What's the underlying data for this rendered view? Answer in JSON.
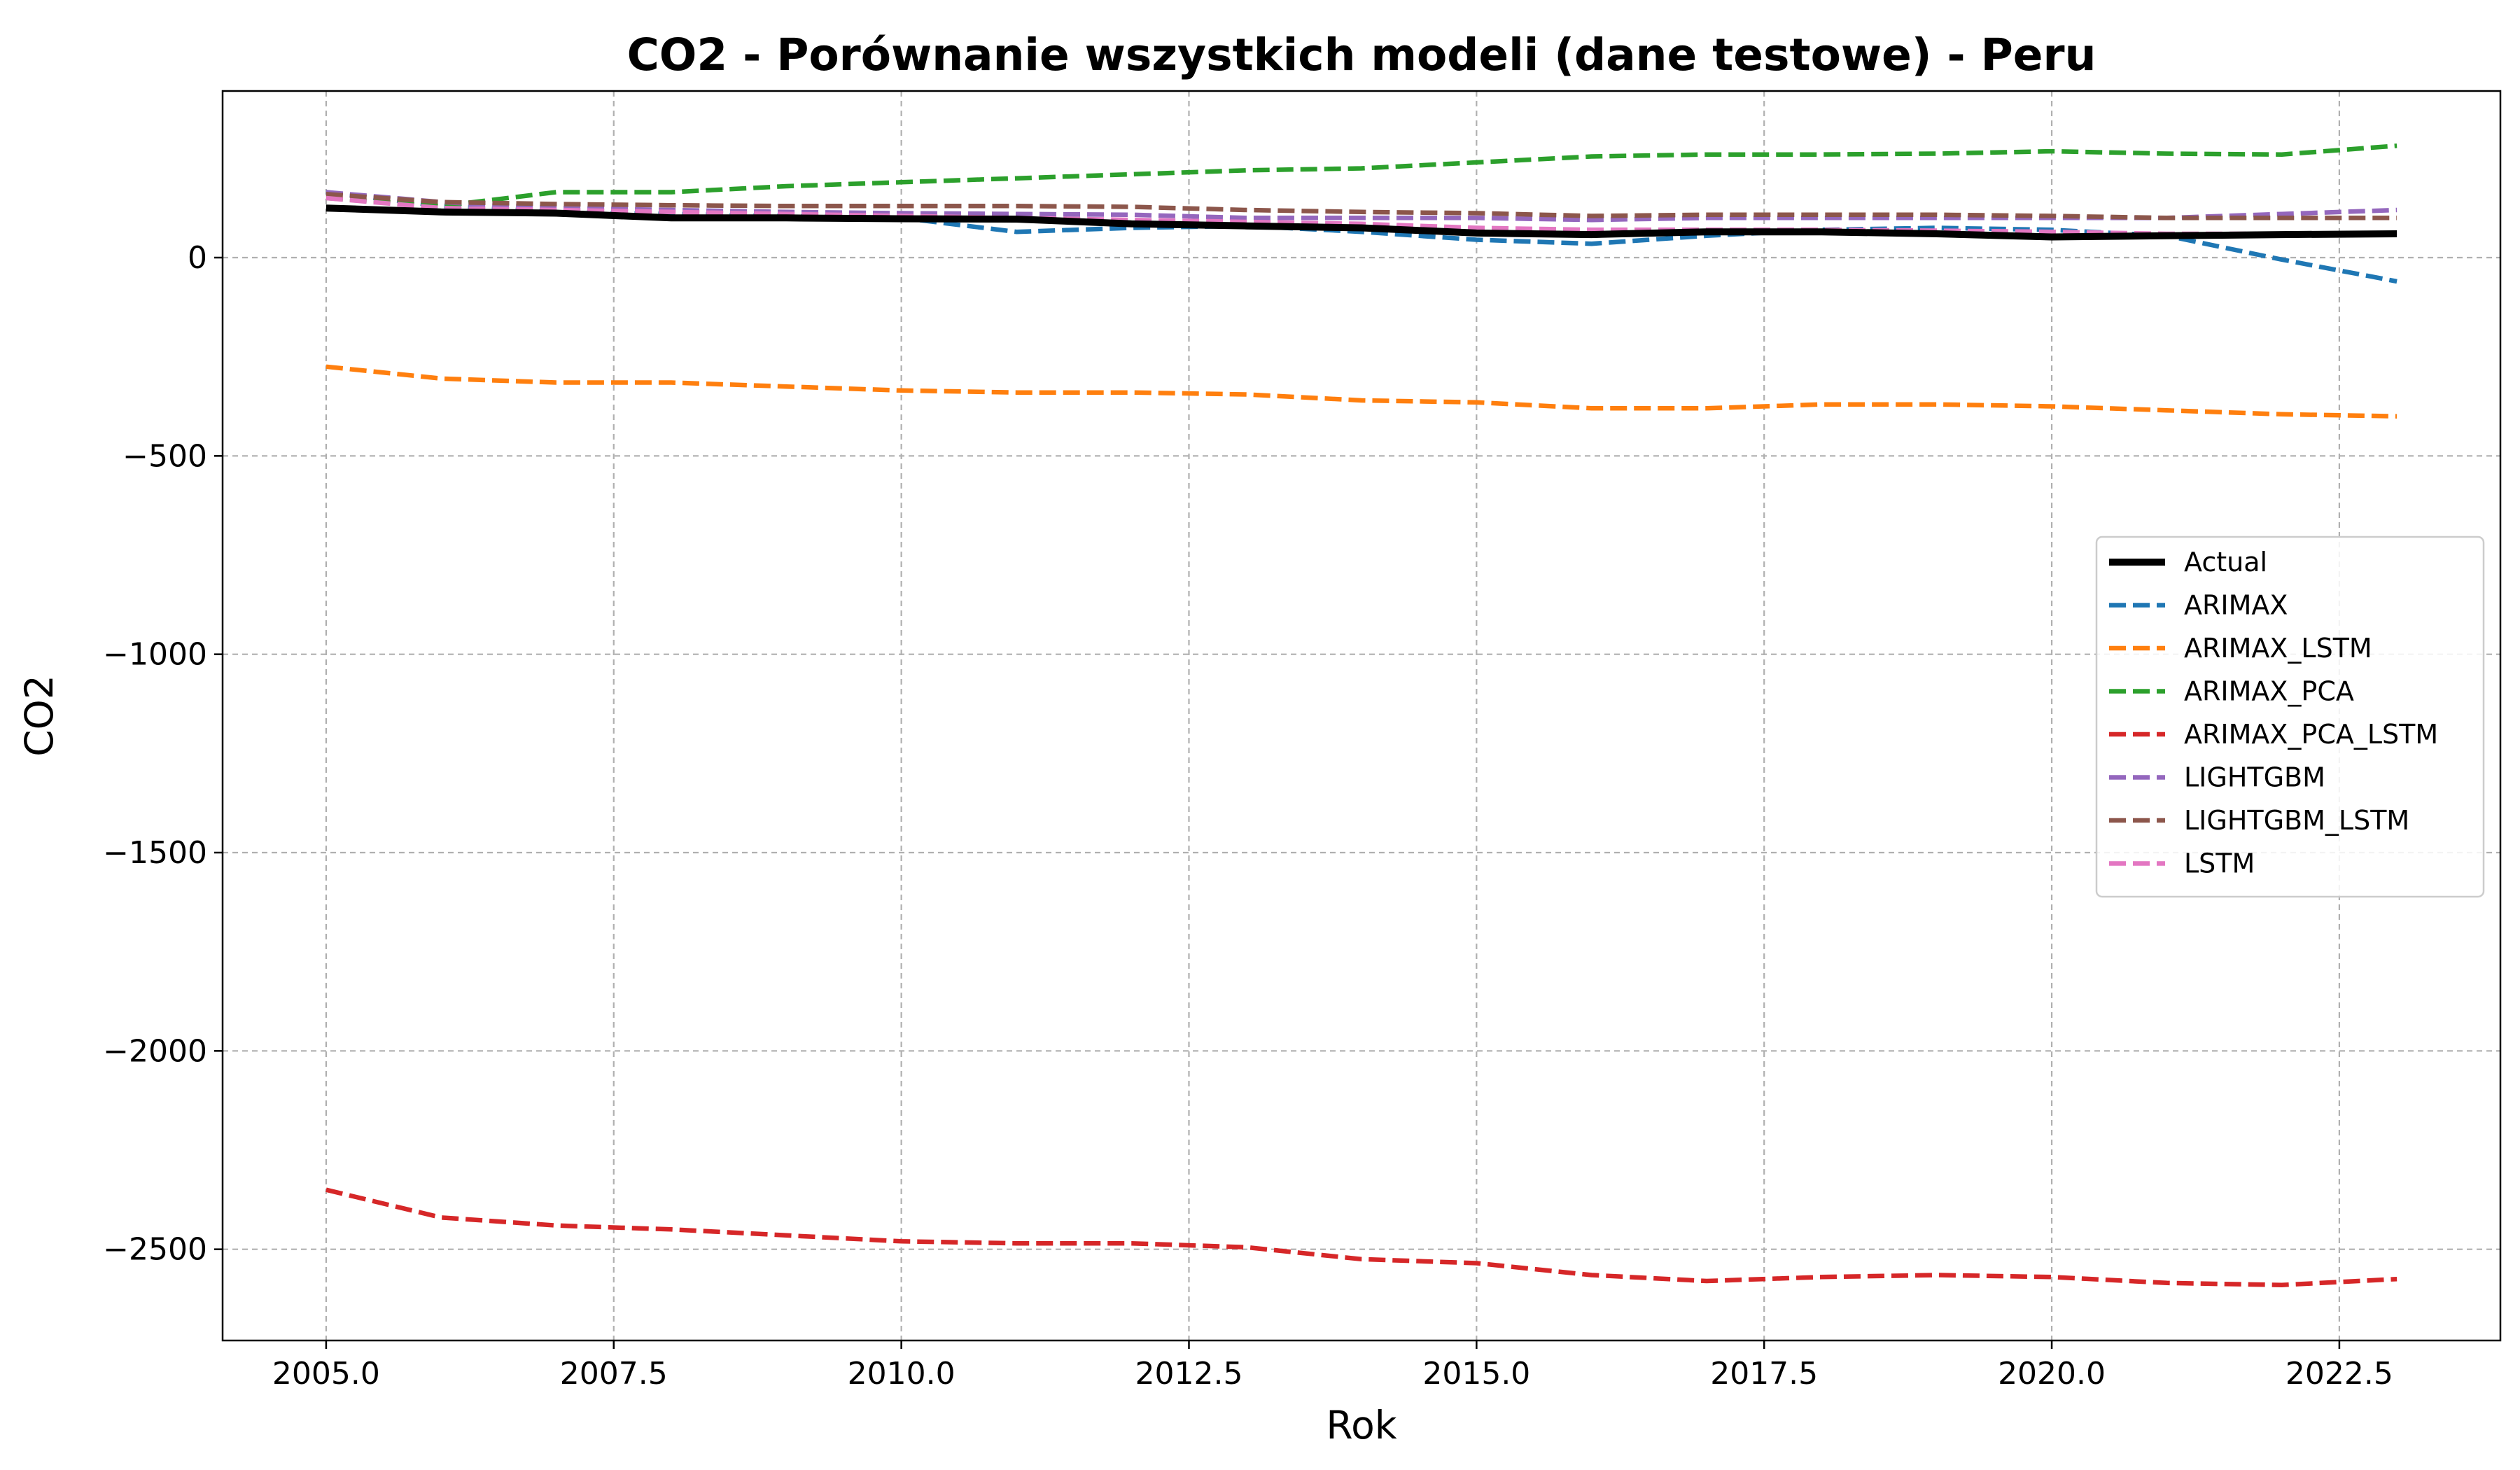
{
  "chart_data": {
    "type": "line",
    "title": "CO2 - Porównanie wszystkich modeli (dane testowe) - Peru",
    "xlabel": "Rok",
    "ylabel": "CO2",
    "xlim": [
      2004.1,
      2023.9
    ],
    "ylim": [
      -2730,
      420
    ],
    "x_ticks": [
      2005.0,
      2007.5,
      2010.0,
      2012.5,
      2015.0,
      2017.5,
      2020.0,
      2022.5
    ],
    "x_tick_labels": [
      "2005.0",
      "2007.5",
      "2010.0",
      "2012.5",
      "2015.0",
      "2017.5",
      "2020.0",
      "2022.5"
    ],
    "y_ticks": [
      0,
      -500,
      -1000,
      -1500,
      -2000,
      -2500
    ],
    "y_tick_labels": [
      "0",
      "−500",
      "−1000",
      "−1500",
      "−2000",
      "−2500"
    ],
    "grid": true,
    "legend_position": "center-right",
    "x": [
      2005,
      2006,
      2007,
      2008,
      2009,
      2010,
      2011,
      2012,
      2013,
      2014,
      2015,
      2016,
      2017,
      2018,
      2019,
      2020,
      2021,
      2022,
      2023
    ],
    "series": [
      {
        "name": "Actual",
        "color": "#000000",
        "style": "solid",
        "values": [
          125,
          115,
          112,
          100,
          100,
          98,
          97,
          85,
          80,
          75,
          62,
          58,
          65,
          65,
          60,
          52,
          55,
          58,
          60
        ]
      },
      {
        "name": "ARIMAX",
        "color": "#1f77b4",
        "style": "dashed",
        "values": [
          165,
          130,
          115,
          110,
          105,
          100,
          65,
          75,
          80,
          65,
          45,
          35,
          55,
          70,
          75,
          70,
          55,
          -5,
          -60
        ]
      },
      {
        "name": "ARIMAX_LSTM",
        "color": "#ff7f0e",
        "style": "dashed",
        "values": [
          -275,
          -305,
          -315,
          -315,
          -325,
          -335,
          -340,
          -340,
          -345,
          -360,
          -365,
          -380,
          -380,
          -370,
          -370,
          -375,
          -385,
          -395,
          -400
        ]
      },
      {
        "name": "ARIMAX_PCA",
        "color": "#2ca02c",
        "style": "dashed",
        "values": [
          150,
          130,
          165,
          165,
          180,
          190,
          200,
          210,
          220,
          225,
          240,
          255,
          260,
          260,
          262,
          268,
          262,
          260,
          282
        ]
      },
      {
        "name": "ARIMAX_PCA_LSTM",
        "color": "#d62728",
        "style": "dashed",
        "values": [
          -2350,
          -2420,
          -2440,
          -2450,
          -2465,
          -2480,
          -2485,
          -2485,
          -2495,
          -2525,
          -2535,
          -2565,
          -2580,
          -2570,
          -2565,
          -2570,
          -2585,
          -2590,
          -2575
        ]
      },
      {
        "name": "LIGHTGBM",
        "color": "#9467bd",
        "style": "dashed",
        "values": [
          165,
          140,
          125,
          120,
          115,
          112,
          110,
          108,
          100,
          100,
          100,
          95,
          100,
          100,
          100,
          100,
          100,
          110,
          120
        ]
      },
      {
        "name": "LIGHTGBM_LSTM",
        "color": "#8c564b",
        "style": "dashed",
        "values": [
          160,
          140,
          135,
          132,
          130,
          130,
          130,
          128,
          120,
          115,
          112,
          105,
          108,
          108,
          108,
          105,
          100,
          100,
          100
        ]
      },
      {
        "name": "LSTM",
        "color": "#e377c2",
        "style": "dashed",
        "values": [
          150,
          125,
          120,
          115,
          110,
          105,
          100,
          95,
          90,
          85,
          75,
          70,
          70,
          70,
          68,
          65,
          60,
          60,
          62
        ]
      }
    ]
  }
}
